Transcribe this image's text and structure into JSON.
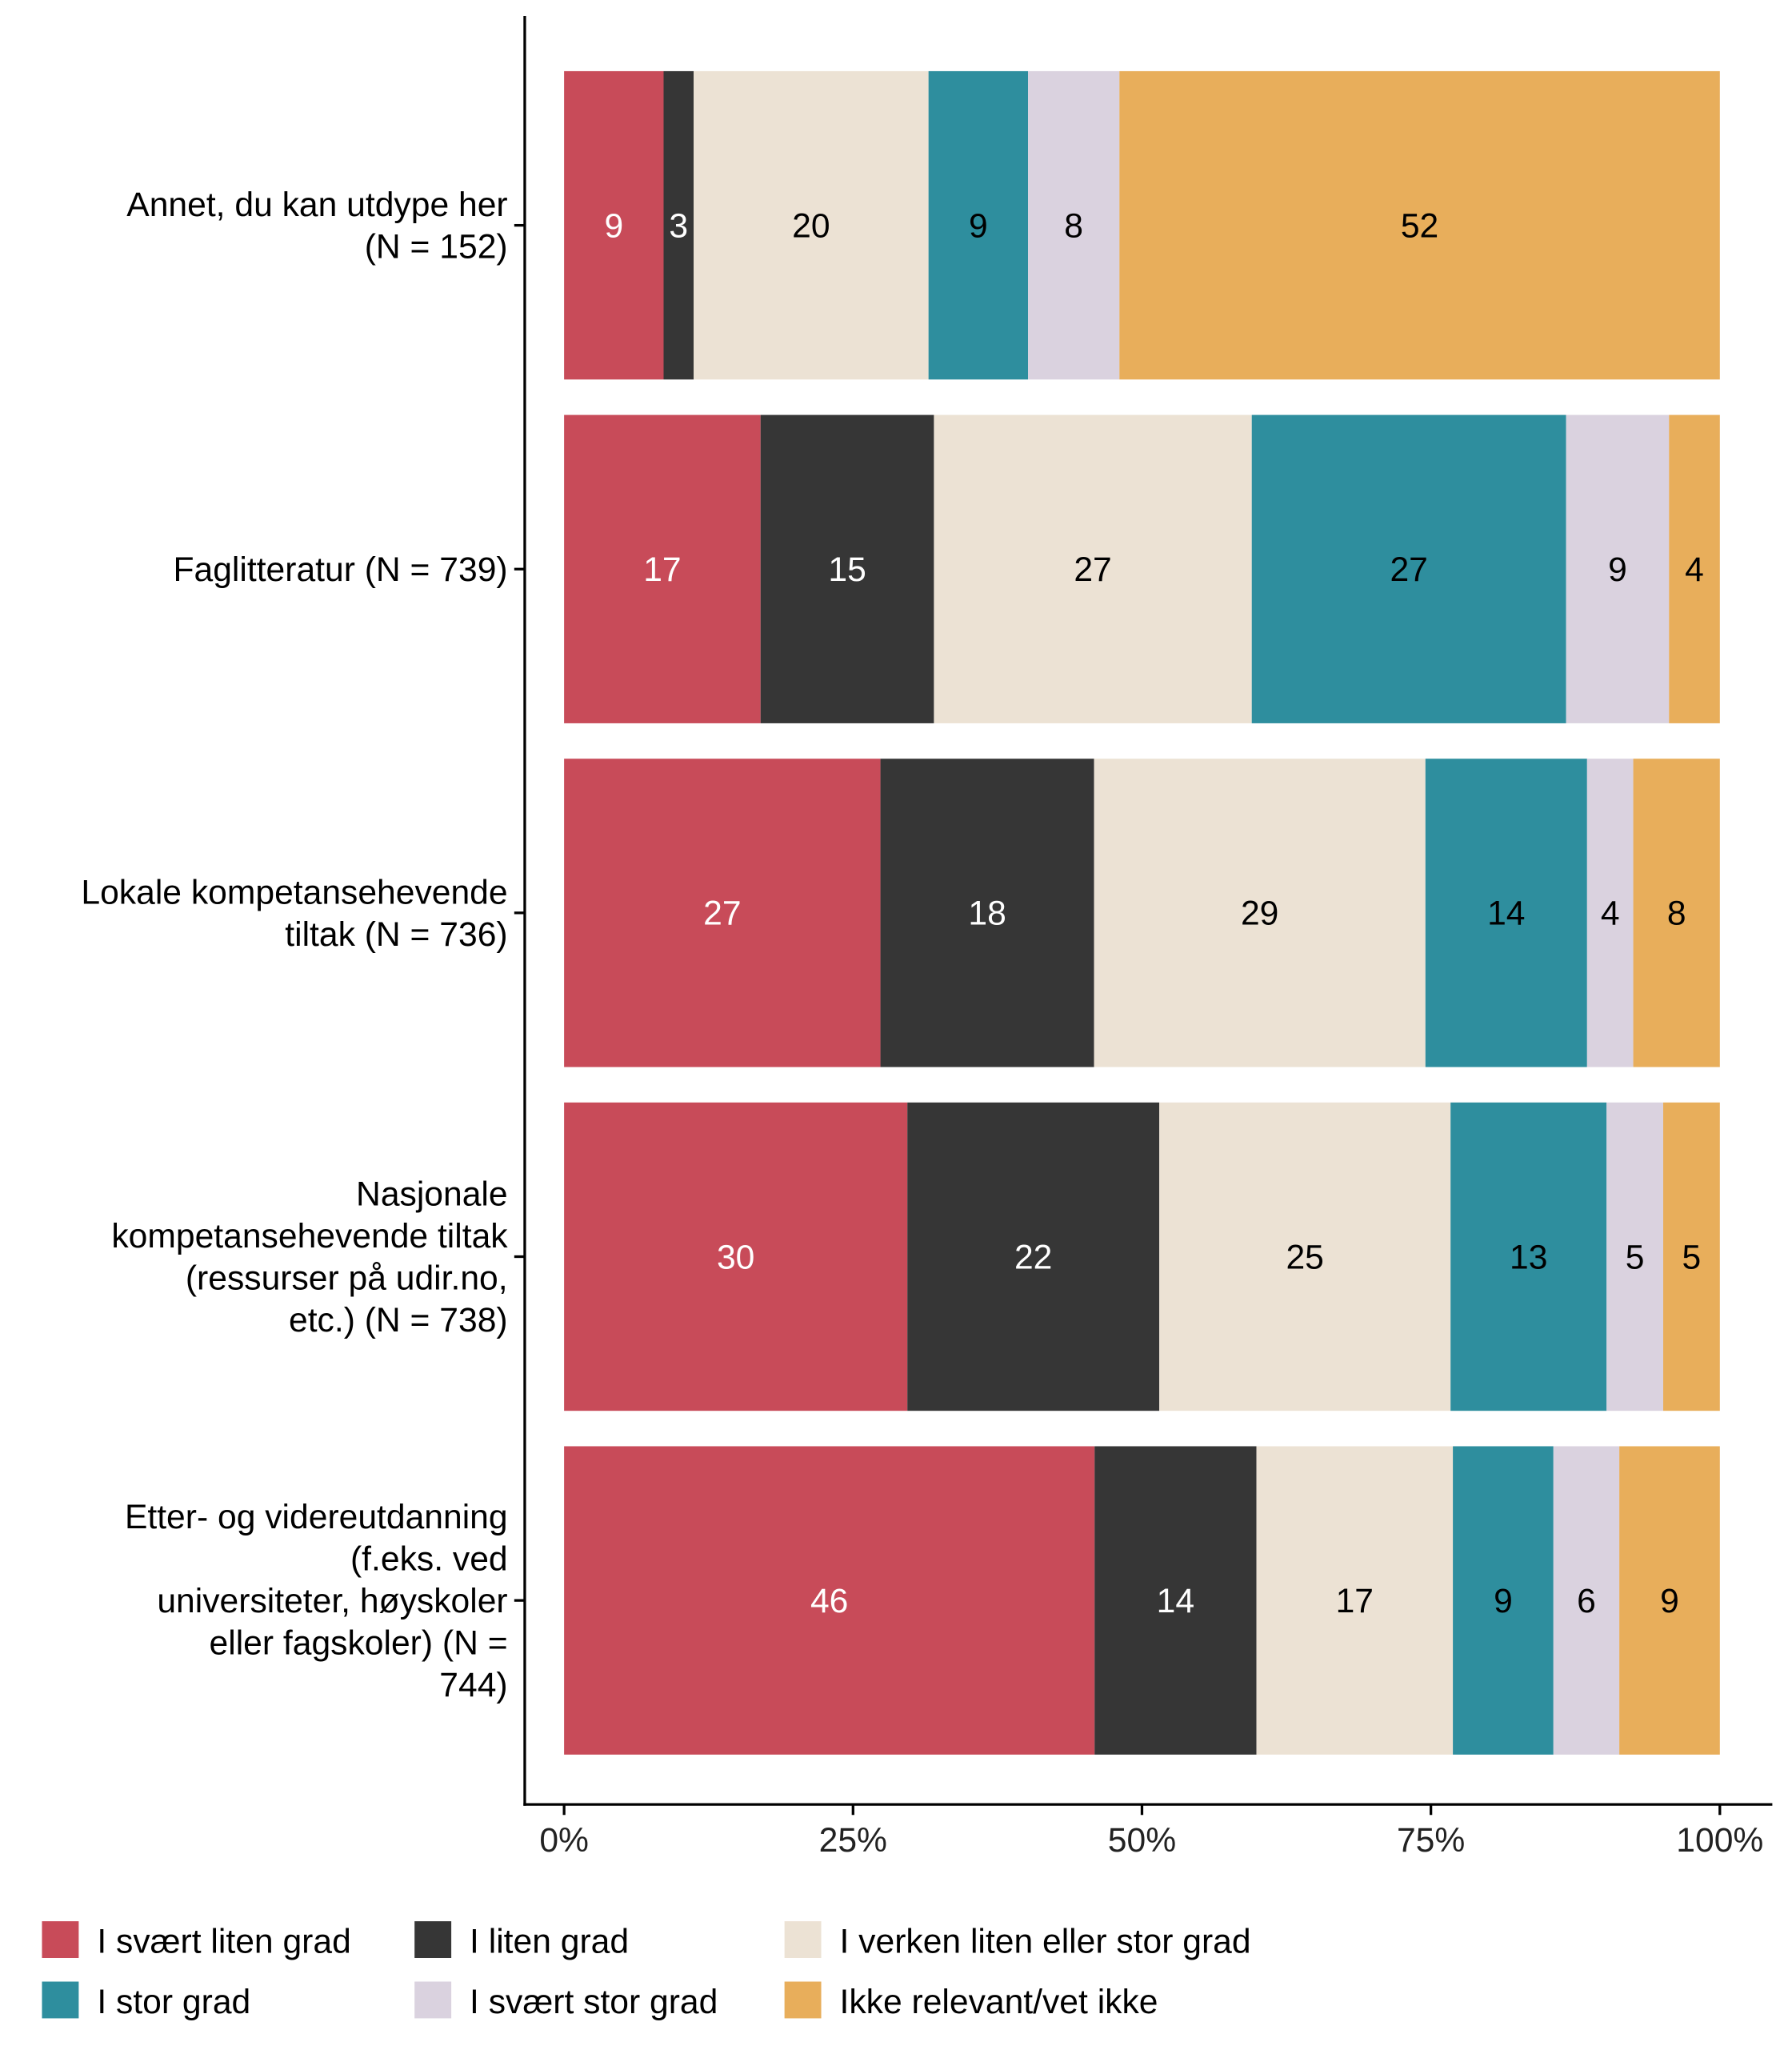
{
  "chart_data": {
    "type": "bar",
    "orientation": "horizontal",
    "stacked": true,
    "xlim": [
      0,
      100
    ],
    "x_ticks": [
      "0%",
      "25%",
      "50%",
      "75%",
      "100%"
    ],
    "legend_position": "bottom",
    "categories": [
      [
        "Annet, du kan utdype her",
        "(N = 152)"
      ],
      [
        "Faglitteratur (N = 739)"
      ],
      [
        "Lokale kompetansehevende",
        "tiltak (N = 736)"
      ],
      [
        "Nasjonale",
        "kompetansehevende tiltak",
        "(ressurser på udir.no,",
        "etc.) (N = 738)"
      ],
      [
        "Etter- og videreutdanning",
        "(f.eks. ved",
        "universiteter, høyskoler",
        "eller fagskoler) (N =",
        "744)"
      ]
    ],
    "series": [
      {
        "name": "I svært liten grad",
        "color": "#C84B59",
        "text_color": "#ffffff",
        "values": [
          8.6,
          17.0,
          27.4,
          29.7,
          45.9
        ],
        "labels": [
          "9",
          "17",
          "27",
          "30",
          "46"
        ]
      },
      {
        "name": "I liten grad",
        "color": "#363636",
        "text_color": "#ffffff",
        "values": [
          2.6,
          15.0,
          18.5,
          21.8,
          14.0
        ],
        "labels": [
          "3",
          "15",
          "18",
          "22",
          "14"
        ]
      },
      {
        "name": "I verken liten eller stor grad",
        "color": "#ECE2D4",
        "text_color": "#000000",
        "values": [
          20.3,
          27.5,
          28.7,
          25.2,
          17.0
        ],
        "labels": [
          "20",
          "27",
          "29",
          "25",
          "17"
        ]
      },
      {
        "name": "I stor grad",
        "color": "#2E8E9E",
        "text_color": "#000000",
        "values": [
          8.6,
          27.2,
          14.0,
          13.5,
          8.7
        ],
        "labels": [
          "9",
          "27",
          "14",
          "13",
          "9"
        ]
      },
      {
        "name": "I svært stor grad",
        "color": "#DAD2DF",
        "text_color": "#000000",
        "values": [
          7.9,
          8.9,
          4.0,
          4.9,
          5.7
        ],
        "labels": [
          "8",
          "9",
          "4",
          "5",
          "6"
        ]
      },
      {
        "name": "Ikke relevant/vet ikke",
        "color": "#E8AE5B",
        "text_color": "#000000",
        "values": [
          51.9,
          4.4,
          7.5,
          4.9,
          8.7
        ],
        "labels": [
          "52",
          "4",
          "8",
          "5",
          "9"
        ]
      }
    ]
  }
}
